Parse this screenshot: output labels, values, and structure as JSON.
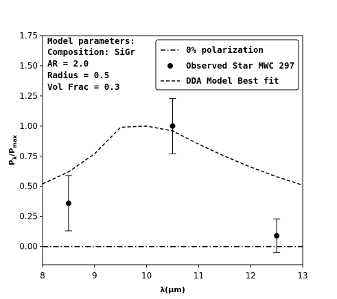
{
  "chart_data": {
    "type": "line",
    "xlabel_main": "λ(μm)",
    "ylabel_main": "P",
    "ylabel_sub": "λ",
    "ylabel_sep": "/P",
    "ylabel_sub2": "max",
    "xlim": [
      8,
      13
    ],
    "ylim": [
      -0.15,
      1.75
    ],
    "x_ticks": [
      "8",
      "9",
      "10",
      "11",
      "12",
      "13"
    ],
    "y_ticks": [
      "0.00",
      "0.25",
      "0.50",
      "0.75",
      "1.00",
      "1.25",
      "1.50",
      "1.75"
    ],
    "annotation": {
      "lines": [
        "Model parameters:",
        "Composition: SiGr",
        "AR = 2.0",
        "Radius = 0.5",
        "Vol Frac = 0.3"
      ]
    },
    "legend_position": "top-right",
    "series": [
      {
        "name": "0% polarization",
        "style": "dashdot",
        "color": "#000000",
        "x": [
          8,
          13
        ],
        "y": [
          0,
          0
        ]
      },
      {
        "name": "Observed Star MWC 297",
        "style": "errorbar",
        "color": "#000000",
        "x": [
          8.5,
          10.5,
          12.5
        ],
        "y": [
          0.36,
          1.0,
          0.09
        ],
        "yerr": [
          0.23,
          0.23,
          0.14
        ]
      },
      {
        "name": "DDA Model Best fit",
        "style": "dashed",
        "color": "#000000",
        "x": [
          8.0,
          8.5,
          9.0,
          9.5,
          10.0,
          10.5,
          11.0,
          11.5,
          12.0,
          12.5,
          13.0
        ],
        "y": [
          0.52,
          0.62,
          0.77,
          0.99,
          1.0,
          0.96,
          0.85,
          0.75,
          0.66,
          0.58,
          0.51
        ]
      }
    ]
  }
}
